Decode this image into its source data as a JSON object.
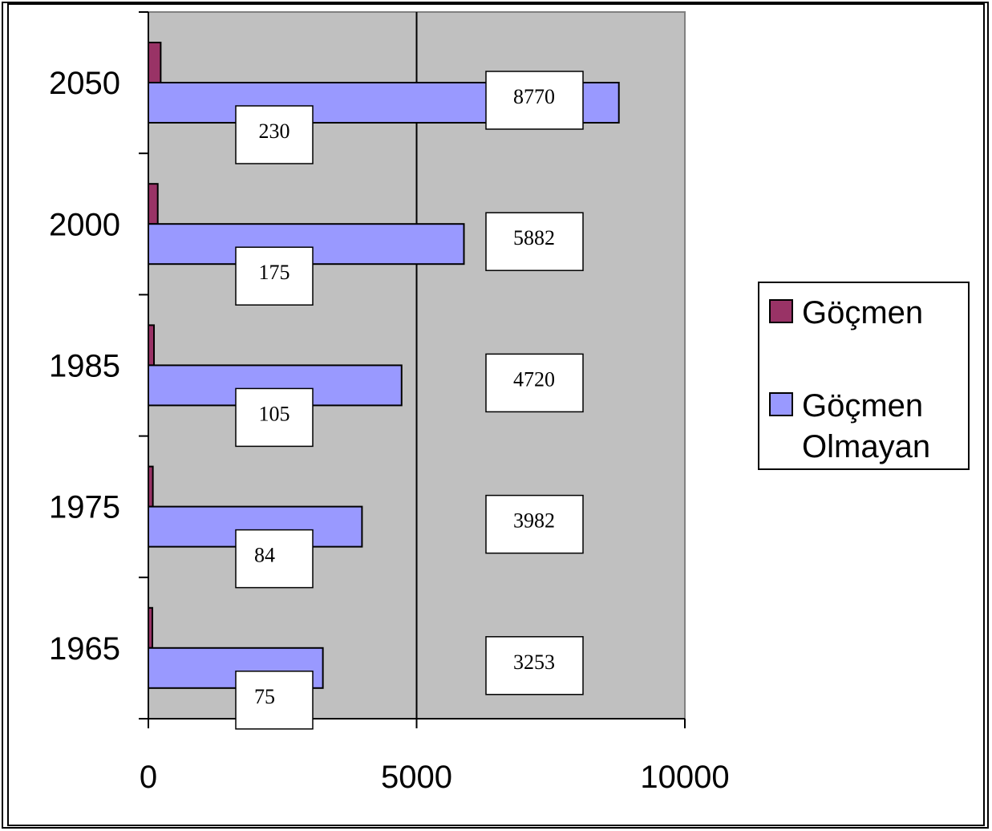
{
  "chart_data": {
    "type": "bar",
    "orientation": "horizontal",
    "categories": [
      "1965",
      "1975",
      "1985",
      "2000",
      "2050"
    ],
    "series": [
      {
        "name": "Göçmen",
        "values": [
          75,
          84,
          105,
          175,
          230
        ],
        "color": "#993366"
      },
      {
        "name": "Göçmen Olmayan",
        "values": [
          3253,
          3982,
          4720,
          5882,
          8770
        ],
        "color": "#9999ff"
      }
    ],
    "xlim": [
      0,
      10000
    ],
    "xticks": [
      0,
      5000,
      10000
    ],
    "grid": "vertical major gridlines",
    "plot_background": "#c0c0c0",
    "legend_position": "right",
    "legend": [
      {
        "label_lines": [
          "Göçmen"
        ],
        "color": "#993366"
      },
      {
        "label_lines": [
          "Göçmen",
          "Olmayan"
        ],
        "color": "#9999ff"
      }
    ],
    "title": "",
    "xlabel": "",
    "ylabel": ""
  }
}
